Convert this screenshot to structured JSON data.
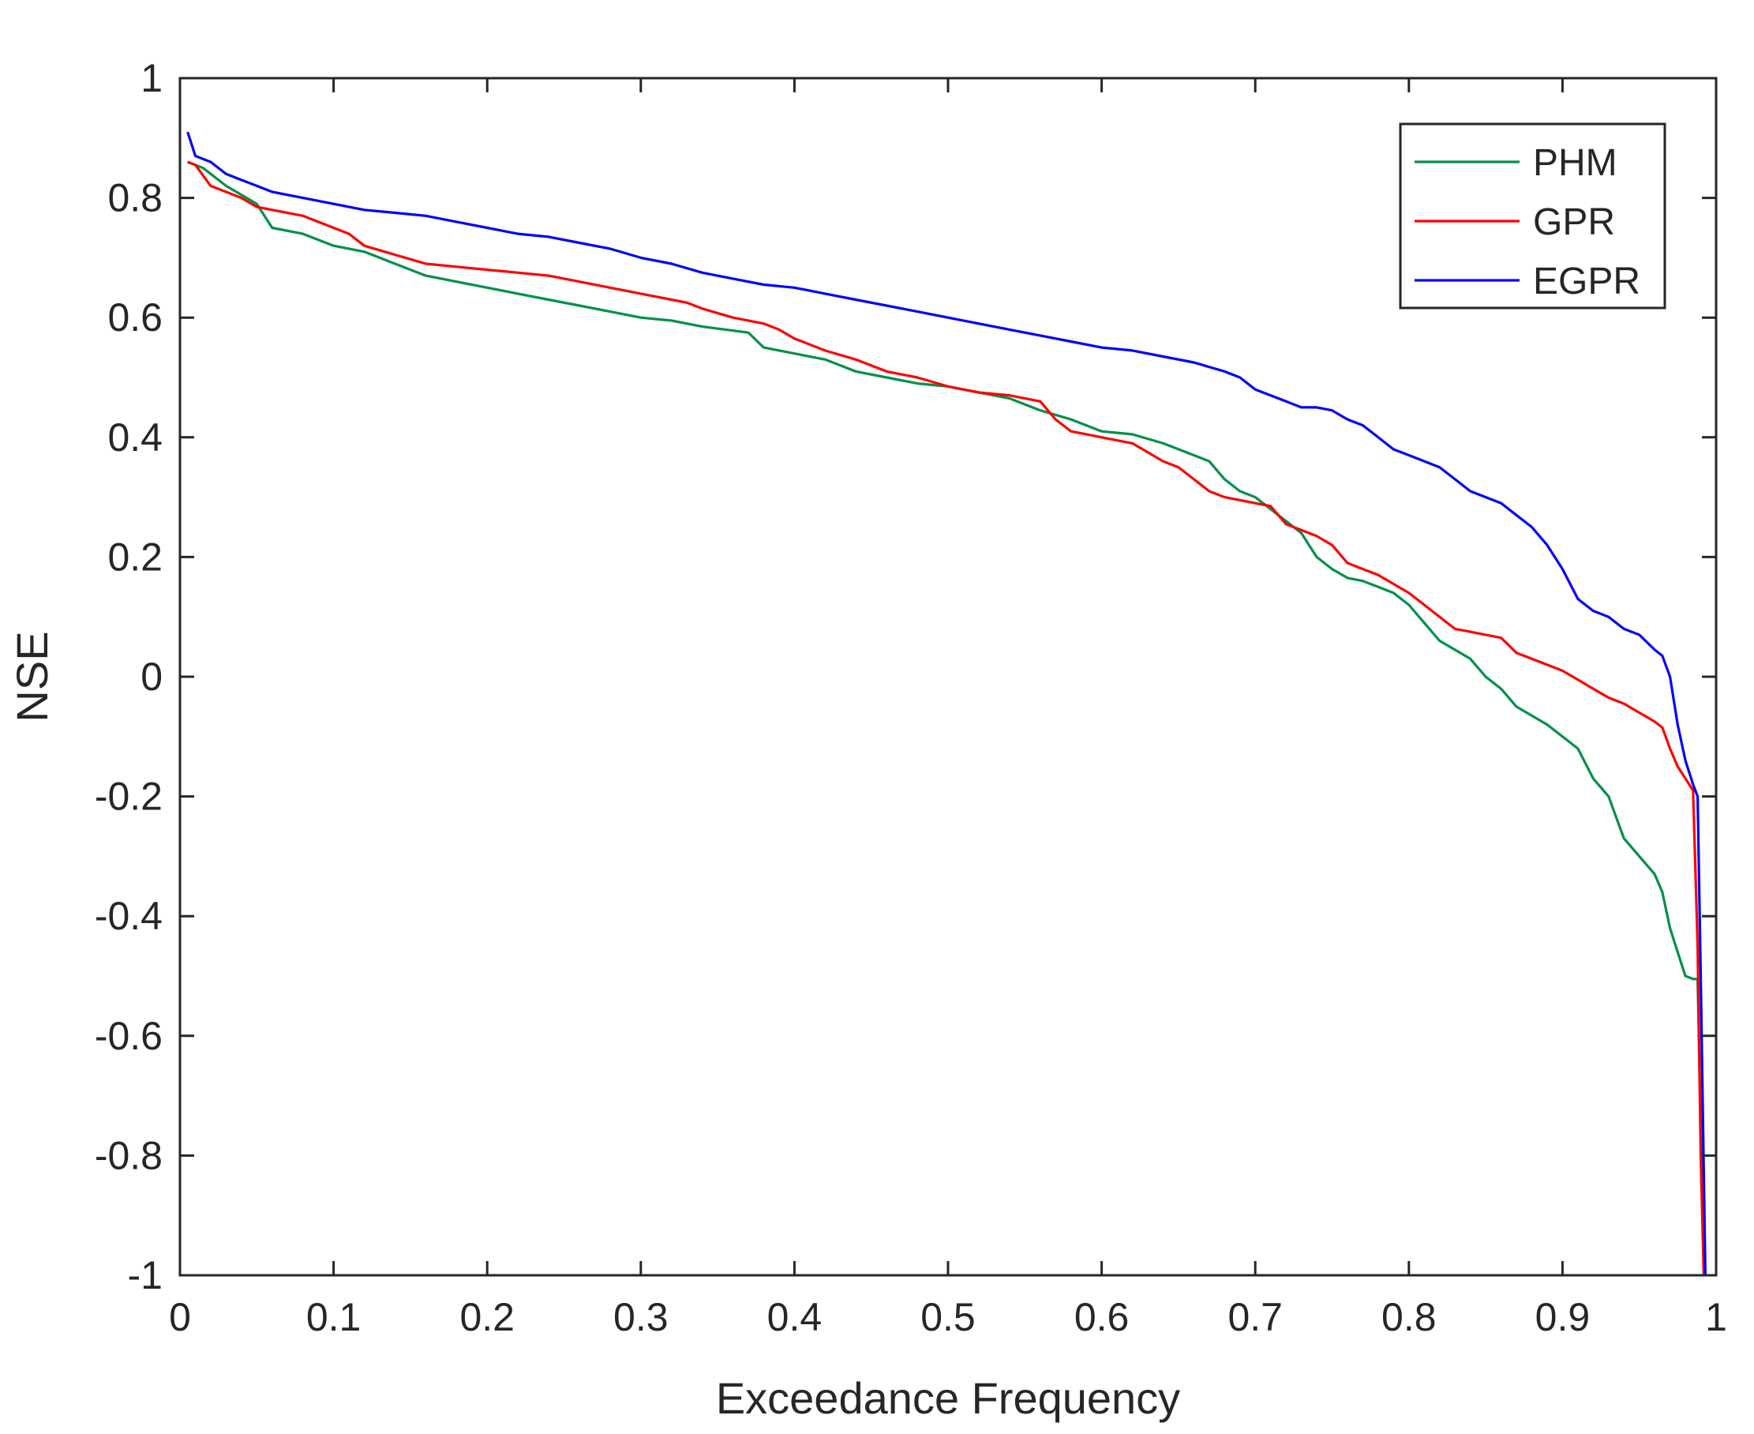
{
  "chart_data": {
    "type": "line",
    "title": "",
    "xlabel": "Exceedance Frequency",
    "ylabel": "NSE",
    "xlim": [
      0,
      1
    ],
    "ylim": [
      -1,
      1
    ],
    "xticks": [
      0,
      0.1,
      0.2,
      0.3,
      0.4,
      0.5,
      0.6,
      0.7,
      0.8,
      0.9,
      1
    ],
    "xtick_labels": [
      "0",
      "0.1",
      "0.2",
      "0.3",
      "0.4",
      "0.5",
      "0.6",
      "0.7",
      "0.8",
      "0.9",
      "1"
    ],
    "yticks": [
      1,
      0.8,
      0.6,
      0.4,
      0.2,
      0,
      -0.2,
      -0.4,
      -0.6,
      -0.8,
      -1
    ],
    "ytick_labels": [
      "1",
      "0.8",
      "0.6",
      "0.4",
      "0.2",
      "0",
      "-0.2",
      "-0.4",
      "-0.6",
      "-0.8",
      "-1"
    ],
    "grid": false,
    "legend_position": "top-right",
    "series": [
      {
        "name": "PHM",
        "color": "#00904a",
        "x": [
          0.005,
          0.015,
          0.03,
          0.05,
          0.06,
          0.08,
          0.1,
          0.12,
          0.14,
          0.16,
          0.18,
          0.2,
          0.22,
          0.24,
          0.26,
          0.28,
          0.3,
          0.32,
          0.34,
          0.37,
          0.38,
          0.4,
          0.42,
          0.44,
          0.46,
          0.48,
          0.5,
          0.52,
          0.54,
          0.56,
          0.58,
          0.6,
          0.62,
          0.64,
          0.66,
          0.67,
          0.68,
          0.69,
          0.7,
          0.71,
          0.72,
          0.73,
          0.74,
          0.75,
          0.76,
          0.77,
          0.78,
          0.79,
          0.8,
          0.81,
          0.82,
          0.83,
          0.84,
          0.85,
          0.86,
          0.87,
          0.88,
          0.89,
          0.9,
          0.91,
          0.92,
          0.93,
          0.94,
          0.95,
          0.96,
          0.965,
          0.97,
          0.975,
          0.98,
          0.985,
          0.988,
          0.99,
          0.992
        ],
        "y": [
          0.86,
          0.85,
          0.82,
          0.79,
          0.75,
          0.74,
          0.72,
          0.71,
          0.69,
          0.67,
          0.66,
          0.65,
          0.64,
          0.63,
          0.62,
          0.61,
          0.6,
          0.595,
          0.585,
          0.575,
          0.55,
          0.54,
          0.53,
          0.51,
          0.5,
          0.49,
          0.485,
          0.475,
          0.465,
          0.445,
          0.43,
          0.41,
          0.405,
          0.39,
          0.37,
          0.36,
          0.33,
          0.31,
          0.3,
          0.28,
          0.26,
          0.24,
          0.2,
          0.18,
          0.165,
          0.16,
          0.15,
          0.14,
          0.12,
          0.09,
          0.06,
          0.045,
          0.03,
          0.0,
          -0.02,
          -0.05,
          -0.065,
          -0.08,
          -0.1,
          -0.12,
          -0.17,
          -0.2,
          -0.27,
          -0.3,
          -0.33,
          -0.36,
          -0.42,
          -0.46,
          -0.5,
          -0.505,
          -0.505,
          -0.75,
          -1.0
        ]
      },
      {
        "name": "GPR",
        "color": "#ff0000",
        "x": [
          0.005,
          0.01,
          0.02,
          0.03,
          0.04,
          0.05,
          0.06,
          0.08,
          0.09,
          0.1,
          0.11,
          0.12,
          0.14,
          0.16,
          0.18,
          0.2,
          0.22,
          0.24,
          0.26,
          0.28,
          0.3,
          0.32,
          0.33,
          0.34,
          0.36,
          0.38,
          0.39,
          0.4,
          0.42,
          0.44,
          0.46,
          0.48,
          0.5,
          0.52,
          0.54,
          0.56,
          0.57,
          0.58,
          0.6,
          0.62,
          0.64,
          0.65,
          0.66,
          0.67,
          0.68,
          0.7,
          0.71,
          0.72,
          0.73,
          0.74,
          0.75,
          0.76,
          0.77,
          0.78,
          0.79,
          0.8,
          0.81,
          0.82,
          0.83,
          0.84,
          0.85,
          0.86,
          0.87,
          0.88,
          0.89,
          0.9,
          0.91,
          0.92,
          0.93,
          0.94,
          0.95,
          0.96,
          0.965,
          0.97,
          0.975,
          0.98,
          0.985,
          0.988,
          0.99,
          0.992
        ],
        "y": [
          0.86,
          0.855,
          0.82,
          0.81,
          0.8,
          0.785,
          0.78,
          0.77,
          0.76,
          0.75,
          0.74,
          0.72,
          0.705,
          0.69,
          0.685,
          0.68,
          0.675,
          0.67,
          0.66,
          0.65,
          0.64,
          0.63,
          0.625,
          0.615,
          0.6,
          0.59,
          0.58,
          0.565,
          0.545,
          0.53,
          0.51,
          0.5,
          0.485,
          0.475,
          0.47,
          0.46,
          0.43,
          0.41,
          0.4,
          0.39,
          0.36,
          0.35,
          0.33,
          0.31,
          0.3,
          0.29,
          0.285,
          0.255,
          0.245,
          0.235,
          0.22,
          0.19,
          0.18,
          0.17,
          0.155,
          0.14,
          0.12,
          0.1,
          0.08,
          0.075,
          0.07,
          0.065,
          0.04,
          0.03,
          0.02,
          0.01,
          -0.005,
          -0.02,
          -0.035,
          -0.045,
          -0.06,
          -0.075,
          -0.085,
          -0.12,
          -0.15,
          -0.17,
          -0.19,
          -0.45,
          -0.8,
          -1.0
        ]
      },
      {
        "name": "EGPR",
        "color": "#0000ff",
        "x": [
          0.005,
          0.01,
          0.02,
          0.03,
          0.04,
          0.05,
          0.06,
          0.08,
          0.1,
          0.12,
          0.14,
          0.16,
          0.18,
          0.2,
          0.22,
          0.24,
          0.26,
          0.28,
          0.3,
          0.32,
          0.34,
          0.36,
          0.38,
          0.4,
          0.42,
          0.44,
          0.46,
          0.48,
          0.5,
          0.52,
          0.54,
          0.56,
          0.58,
          0.6,
          0.62,
          0.64,
          0.66,
          0.68,
          0.69,
          0.7,
          0.71,
          0.72,
          0.73,
          0.74,
          0.75,
          0.76,
          0.77,
          0.78,
          0.79,
          0.8,
          0.81,
          0.82,
          0.83,
          0.84,
          0.85,
          0.86,
          0.87,
          0.88,
          0.89,
          0.9,
          0.91,
          0.92,
          0.93,
          0.94,
          0.95,
          0.96,
          0.965,
          0.97,
          0.975,
          0.98,
          0.985,
          0.988,
          0.99,
          0.993
        ],
        "y": [
          0.91,
          0.87,
          0.86,
          0.84,
          0.83,
          0.82,
          0.81,
          0.8,
          0.79,
          0.78,
          0.775,
          0.77,
          0.76,
          0.75,
          0.74,
          0.735,
          0.725,
          0.715,
          0.7,
          0.69,
          0.675,
          0.665,
          0.655,
          0.65,
          0.64,
          0.63,
          0.62,
          0.61,
          0.6,
          0.59,
          0.58,
          0.57,
          0.56,
          0.55,
          0.545,
          0.535,
          0.525,
          0.51,
          0.5,
          0.48,
          0.47,
          0.46,
          0.45,
          0.45,
          0.445,
          0.43,
          0.42,
          0.4,
          0.38,
          0.37,
          0.36,
          0.35,
          0.33,
          0.31,
          0.3,
          0.29,
          0.27,
          0.25,
          0.22,
          0.18,
          0.13,
          0.11,
          0.1,
          0.08,
          0.07,
          0.045,
          0.035,
          0.0,
          -0.08,
          -0.14,
          -0.18,
          -0.2,
          -0.5,
          -1.0
        ]
      }
    ]
  }
}
